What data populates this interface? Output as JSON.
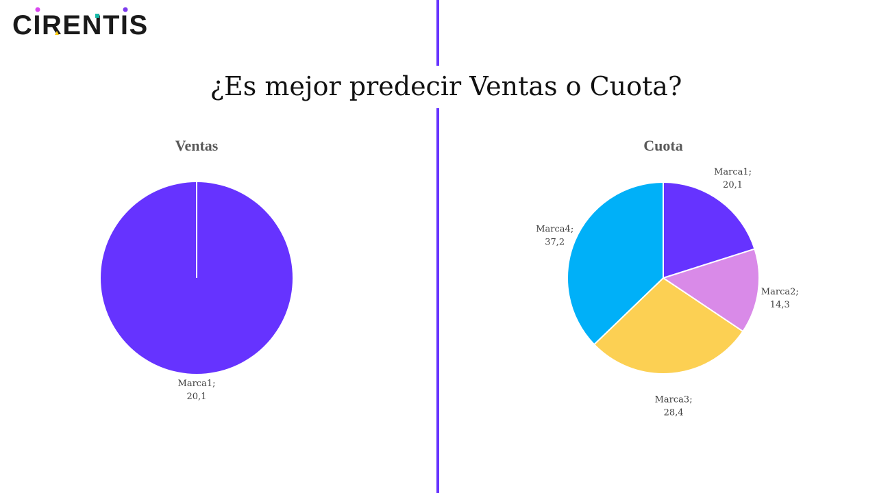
{
  "brand": {
    "name": "CIRENTIS",
    "colors": {
      "text": "#1a1a1a",
      "dot_left": "#d946ef",
      "dot_right": "#7c3aed",
      "accent": "#14b8a6",
      "triangle": "#facc15"
    }
  },
  "accent_color": "#6633ff",
  "page_title": "¿Es mejor predecir Ventas o Cuota?",
  "chart_data": [
    {
      "type": "pie",
      "title": "Ventas",
      "slices": [
        {
          "label": "Marca1",
          "value": 20.1,
          "display": "20,1",
          "color": "#6633ff"
        }
      ]
    },
    {
      "type": "pie",
      "title": "Cuota",
      "slices": [
        {
          "label": "Marca1",
          "value": 20.1,
          "display": "20,1",
          "color": "#6633ff"
        },
        {
          "label": "Marca2",
          "value": 14.3,
          "display": "14,3",
          "color": "#d98ae8"
        },
        {
          "label": "Marca3",
          "value": 28.4,
          "display": "28,4",
          "color": "#fcd053"
        },
        {
          "label": "Marca4",
          "value": 37.2,
          "display": "37,2",
          "color": "#00b0f8"
        }
      ]
    }
  ]
}
